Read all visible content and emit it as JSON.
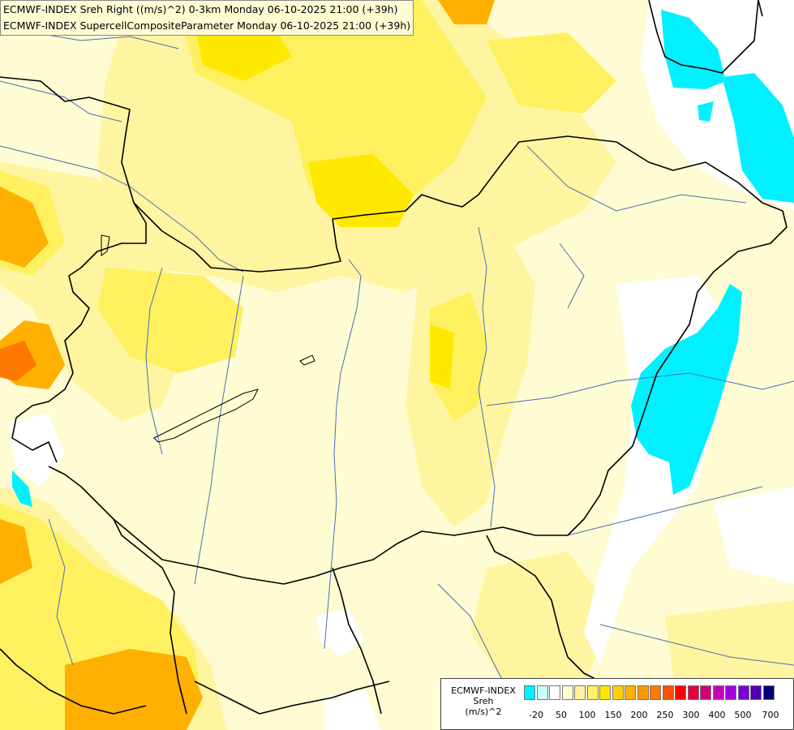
{
  "header": {
    "line1": "ECMWF-INDEX Sreh Right ((m/s)^2) 0-3km Monday 06-10-2025 21:00 (+39h)",
    "line2": "ECMWF-INDEX SupercellCompositeParameter Monday 06-10-2025 21:00 (+39h)"
  },
  "legend": {
    "title_line1": "ECMWF-INDEX",
    "title_line2": "Sreh",
    "title_line3": "(m/s)^2",
    "colors": [
      "#00f0ff",
      "#c8ffff",
      "#ffffff",
      "#fffbd2",
      "#fff5a0",
      "#fff060",
      "#ffe800",
      "#ffd000",
      "#ffb000",
      "#ff9600",
      "#ff7800",
      "#ff5000",
      "#ff0000",
      "#e6003c",
      "#d20078",
      "#c800b4",
      "#a000dc",
      "#7800dc",
      "#5000b4",
      "#000078"
    ],
    "tick_labels": [
      "-20",
      "50",
      "100",
      "150",
      "200",
      "250",
      "300",
      "400",
      "500",
      "700"
    ]
  },
  "map": {
    "colors": {
      "background": "#fffbd2",
      "light_yellow": "#fff5a0",
      "yellow": "#fff060",
      "bright_yellow": "#ffe800",
      "orange": "#ffb000",
      "dark_orange": "#ff9600",
      "red_orange": "#ff7800",
      "cyan": "#00f0ff",
      "white": "#ffffff",
      "border": "#000000",
      "river": "#4a6fb5"
    }
  }
}
